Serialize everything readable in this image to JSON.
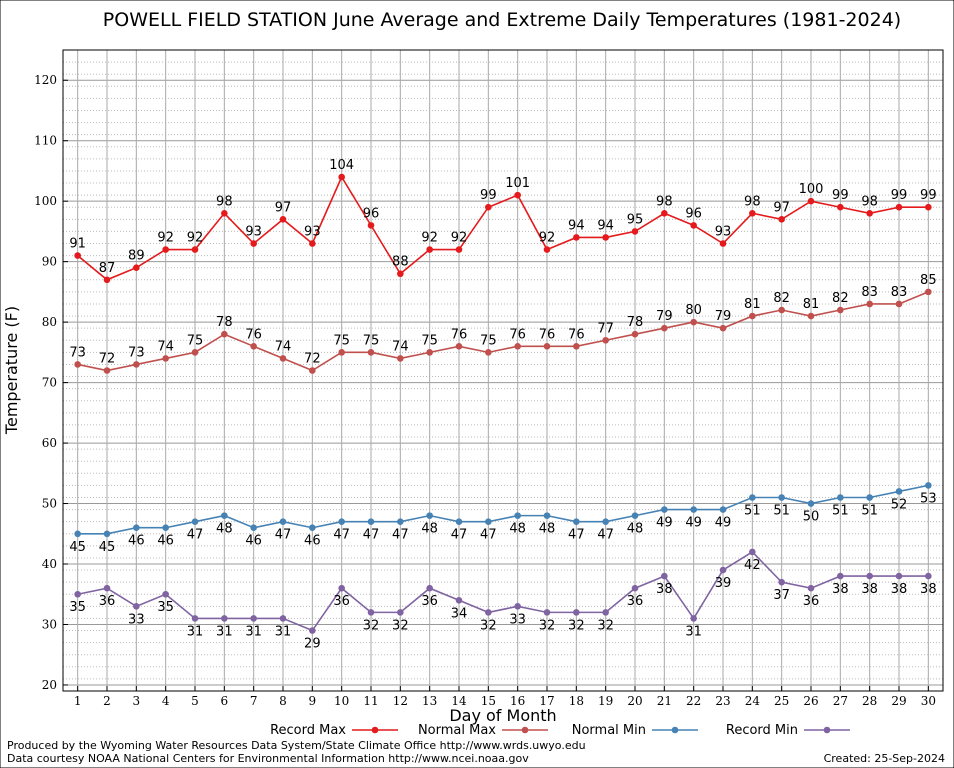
{
  "chart_data": {
    "type": "line",
    "title": "POWELL FIELD STATION June Average and Extreme Daily Temperatures (1981-2024)",
    "xlabel": "Day of Month",
    "ylabel": "Temperature (F)",
    "xlim": [
      0.5,
      30.5
    ],
    "ylim": [
      19,
      125
    ],
    "yticks": [
      20,
      30,
      40,
      50,
      60,
      70,
      80,
      90,
      100,
      110,
      120
    ],
    "x": [
      1,
      2,
      3,
      4,
      5,
      6,
      7,
      8,
      9,
      10,
      11,
      12,
      13,
      14,
      15,
      16,
      17,
      18,
      19,
      20,
      21,
      22,
      23,
      24,
      25,
      26,
      27,
      28,
      29,
      30
    ],
    "grid": true,
    "legend_position": "bottom",
    "series": [
      {
        "name": "Record Max",
        "color": "#e41a1c",
        "label_pos": "above",
        "values": [
          91,
          87,
          89,
          92,
          92,
          98,
          93,
          97,
          93,
          104,
          96,
          88,
          92,
          92,
          99,
          101,
          92,
          94,
          94,
          95,
          98,
          96,
          93,
          98,
          97,
          100,
          99,
          98,
          99,
          99
        ]
      },
      {
        "name": "Normal Max",
        "color": "#c0504d",
        "label_pos": "above",
        "values": [
          73,
          72,
          73,
          74,
          75,
          78,
          76,
          74,
          72,
          75,
          75,
          74,
          75,
          76,
          75,
          76,
          76,
          76,
          77,
          78,
          79,
          80,
          79,
          81,
          82,
          81,
          82,
          83,
          83,
          85
        ]
      },
      {
        "name": "Normal Min",
        "color": "#4682b4",
        "label_pos": "below",
        "values": [
          45,
          45,
          46,
          46,
          47,
          48,
          46,
          47,
          46,
          47,
          47,
          47,
          48,
          47,
          47,
          48,
          48,
          47,
          47,
          48,
          49,
          49,
          49,
          51,
          51,
          50,
          51,
          51,
          52,
          53
        ]
      },
      {
        "name": "Record Min",
        "color": "#8064a2",
        "label_pos": "below",
        "values": [
          35,
          36,
          33,
          35,
          31,
          31,
          31,
          31,
          29,
          36,
          32,
          32,
          36,
          34,
          32,
          33,
          32,
          32,
          32,
          36,
          38,
          31,
          39,
          42,
          37,
          36,
          38,
          38,
          38,
          38
        ]
      }
    ]
  },
  "footer": {
    "produced_by": "Produced by the Wyoming Water Resources Data System/State Climate Office http://www.wrds.uwyo.edu",
    "courtesy": "Data courtesy NOAA National Centers for Environmental Information http://www.ncei.noaa.gov",
    "created": "Created:  25-Sep-2024"
  }
}
